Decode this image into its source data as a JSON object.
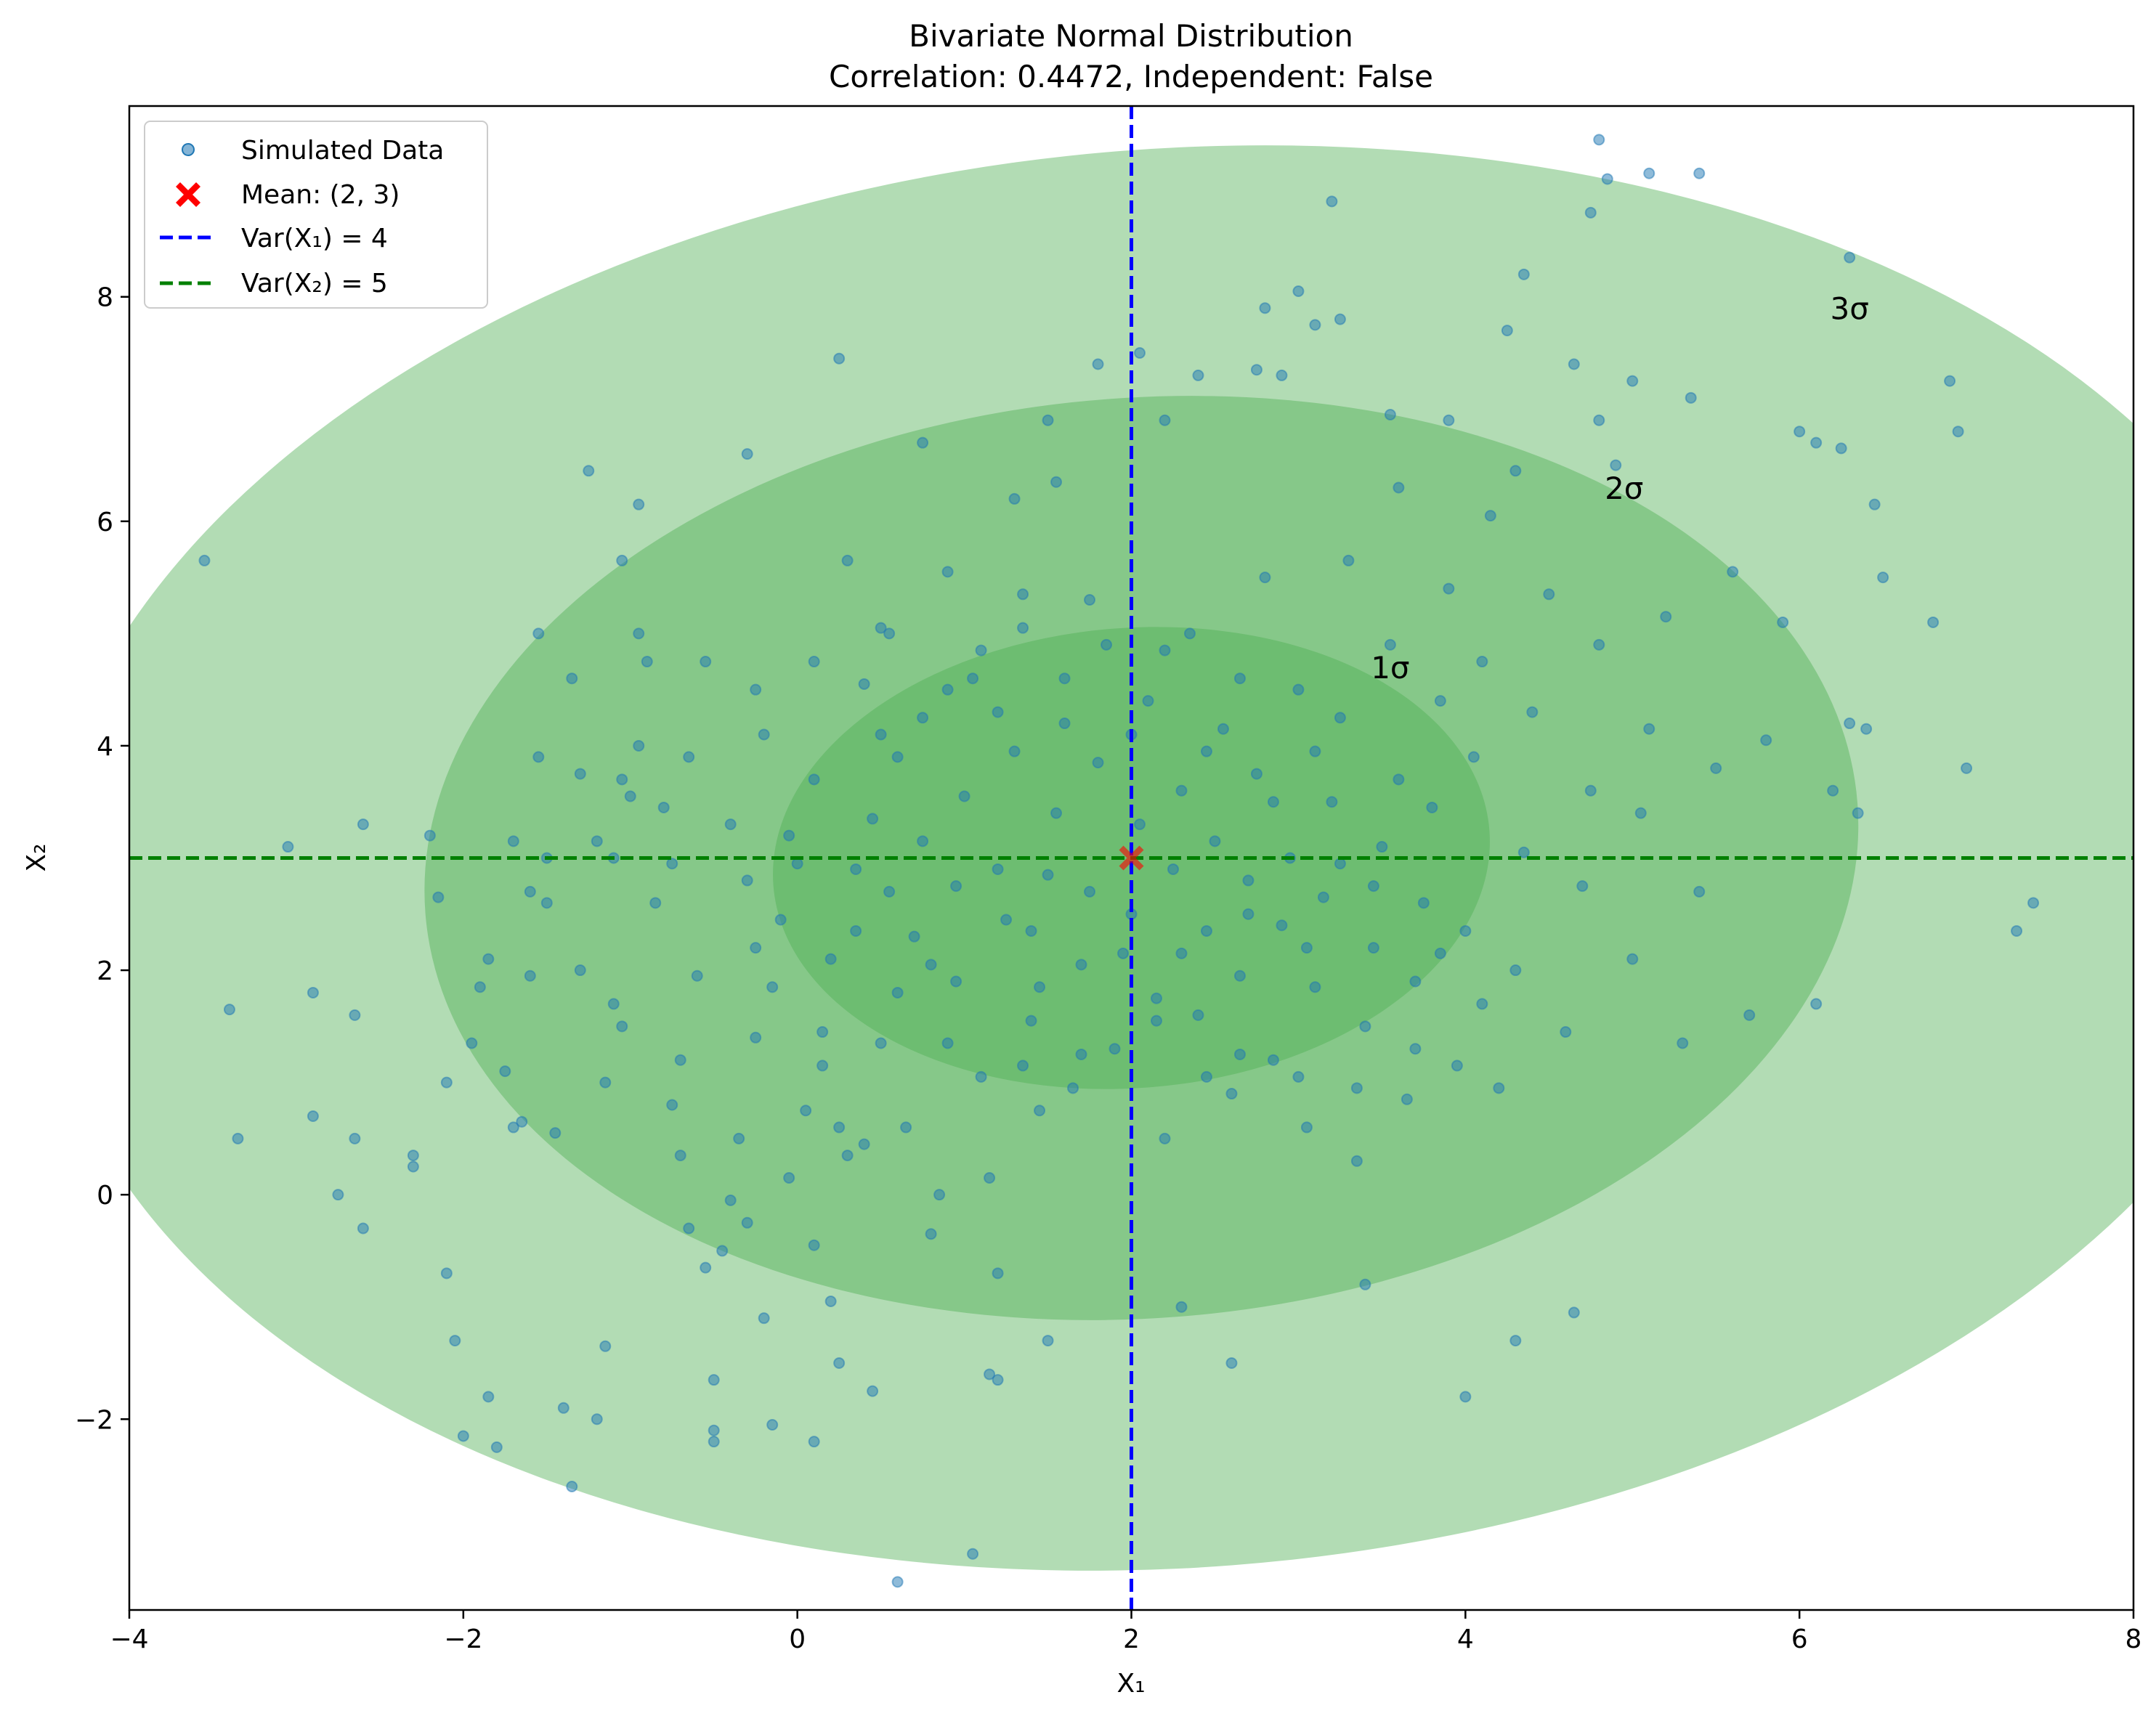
{
  "chart_data": {
    "type": "scatter",
    "title": "Bivariate Normal Distribution",
    "subtitle": "Correlation: 0.4472, Independent: False",
    "xlabel": "X₁",
    "ylabel": "X₂",
    "xlim": [
      -4,
      8
    ],
    "ylim": [
      -3.7,
      9.7
    ],
    "x_ticks": [
      -4,
      -2,
      0,
      2,
      4,
      6,
      8
    ],
    "x_tick_labels": [
      "−4",
      "−2",
      "0",
      "2",
      "4",
      "6",
      "8"
    ],
    "y_ticks": [
      -2,
      0,
      2,
      4,
      6,
      8
    ],
    "y_tick_labels": [
      "−2",
      "0",
      "2",
      "4",
      "6",
      "8"
    ],
    "grid": false,
    "legend_position": "upper-left",
    "colors": {
      "points": "#1f77b4",
      "mean": "#ff0000",
      "vline": "#0000ff",
      "hline": "#008000",
      "ellipse": "#4caf50"
    },
    "mean": {
      "x": 2,
      "y": 3
    },
    "vline": {
      "x": 2
    },
    "hline": {
      "y": 3
    },
    "ellipses": [
      {
        "label": "3σ",
        "cx": 2.28,
        "cy": 3.0,
        "rx": 6.85,
        "ry": 6.32,
        "angle_deg": -4.4,
        "label_x": 6.3,
        "label_y": 7.8
      },
      {
        "label": "2σ",
        "cx": 2.06,
        "cy": 3.0,
        "rx": 4.3,
        "ry": 4.1,
        "angle_deg": -4.4,
        "label_x": 4.95,
        "label_y": 6.2
      },
      {
        "label": "1σ",
        "cx": 2.0,
        "cy": 3.0,
        "rx": 2.15,
        "ry": 2.05,
        "angle_deg": -4.4,
        "label_x": 3.55,
        "label_y": 4.6
      }
    ],
    "legend": [
      {
        "label": "Simulated Data",
        "marker": "dot"
      },
      {
        "label": "Mean: (2, 3)",
        "marker": "x"
      },
      {
        "label": "Var(X₁) = 4",
        "marker": "dash-blue"
      },
      {
        "label": "Var(X₂) = 5",
        "marker": "dash-green"
      }
    ],
    "series": [
      {
        "name": "Simulated Data",
        "points": [
          [
            -3.55,
            5.65
          ],
          [
            -3.4,
            1.65
          ],
          [
            -3.35,
            0.5
          ],
          [
            -3.05,
            3.1
          ],
          [
            -2.9,
            1.8
          ],
          [
            -2.9,
            0.7
          ],
          [
            -2.75,
            0.0
          ],
          [
            -2.65,
            1.6
          ],
          [
            -2.65,
            0.5
          ],
          [
            -2.6,
            3.3
          ],
          [
            -2.6,
            -0.3
          ],
          [
            -2.3,
            0.35
          ],
          [
            -2.3,
            0.25
          ],
          [
            -2.2,
            3.2
          ],
          [
            -2.15,
            2.65
          ],
          [
            -2.1,
            1.0
          ],
          [
            -2.1,
            -0.7
          ],
          [
            -2.05,
            -1.3
          ],
          [
            -2.0,
            -2.15
          ],
          [
            -1.95,
            1.35
          ],
          [
            -1.9,
            1.85
          ],
          [
            -1.85,
            -1.8
          ],
          [
            -1.8,
            -2.25
          ],
          [
            -1.75,
            1.1
          ],
          [
            -1.7,
            0.6
          ],
          [
            -1.65,
            0.65
          ],
          [
            -1.6,
            1.95
          ],
          [
            -1.55,
            3.9
          ],
          [
            -1.5,
            3.0
          ],
          [
            -1.45,
            0.55
          ],
          [
            -1.4,
            -1.9
          ],
          [
            -1.35,
            4.6
          ],
          [
            -1.3,
            3.75
          ],
          [
            -1.25,
            6.45
          ],
          [
            -1.2,
            3.15
          ],
          [
            -1.15,
            1.0
          ],
          [
            -1.1,
            1.7
          ],
          [
            -1.05,
            3.7
          ],
          [
            -1.0,
            3.55
          ],
          [
            -0.95,
            5.0
          ],
          [
            -0.9,
            4.75
          ],
          [
            -0.85,
            2.6
          ],
          [
            -0.8,
            3.45
          ],
          [
            -0.75,
            0.8
          ],
          [
            -0.7,
            0.35
          ],
          [
            -0.65,
            -0.3
          ],
          [
            -0.6,
            1.95
          ],
          [
            -0.55,
            -0.65
          ],
          [
            -0.5,
            -1.65
          ],
          [
            -0.45,
            -0.5
          ],
          [
            -0.4,
            -0.05
          ],
          [
            -0.35,
            0.5
          ],
          [
            -0.3,
            -0.25
          ],
          [
            -0.25,
            2.2
          ],
          [
            -0.2,
            -1.1
          ],
          [
            -0.15,
            1.85
          ],
          [
            -0.1,
            2.45
          ],
          [
            -0.05,
            3.2
          ],
          [
            0.0,
            2.95
          ],
          [
            0.05,
            0.75
          ],
          [
            0.1,
            -0.45
          ],
          [
            0.15,
            1.15
          ],
          [
            0.2,
            -0.95
          ],
          [
            0.25,
            -1.5
          ],
          [
            0.3,
            0.35
          ],
          [
            0.35,
            2.35
          ],
          [
            0.4,
            0.45
          ],
          [
            0.45,
            3.35
          ],
          [
            0.5,
            4.1
          ],
          [
            0.55,
            5.0
          ],
          [
            0.6,
            1.8
          ],
          [
            0.65,
            0.6
          ],
          [
            0.7,
            2.3
          ],
          [
            0.75,
            3.15
          ],
          [
            0.8,
            -0.35
          ],
          [
            0.85,
            0.0
          ],
          [
            0.9,
            1.35
          ],
          [
            0.95,
            2.75
          ],
          [
            1.0,
            3.55
          ],
          [
            1.05,
            4.6
          ],
          [
            1.1,
            1.05
          ],
          [
            1.15,
            0.15
          ],
          [
            1.2,
            -0.7
          ],
          [
            1.25,
            2.45
          ],
          [
            1.3,
            3.95
          ],
          [
            1.35,
            5.35
          ],
          [
            1.4,
            1.55
          ],
          [
            1.45,
            0.75
          ],
          [
            1.5,
            2.85
          ],
          [
            1.55,
            3.4
          ],
          [
            1.6,
            4.2
          ],
          [
            1.65,
            0.95
          ],
          [
            1.7,
            2.05
          ],
          [
            1.75,
            2.7
          ],
          [
            1.8,
            3.85
          ],
          [
            1.85,
            4.9
          ],
          [
            1.9,
            1.3
          ],
          [
            1.95,
            2.15
          ],
          [
            2.0,
            2.5
          ],
          [
            2.05,
            3.3
          ],
          [
            2.1,
            4.4
          ],
          [
            2.15,
            1.75
          ],
          [
            2.2,
            0.5
          ],
          [
            2.25,
            2.9
          ],
          [
            2.3,
            3.6
          ],
          [
            2.35,
            5.0
          ],
          [
            2.4,
            1.6
          ],
          [
            2.45,
            2.35
          ],
          [
            2.5,
            3.15
          ],
          [
            2.55,
            4.15
          ],
          [
            2.6,
            0.9
          ],
          [
            2.65,
            1.95
          ],
          [
            2.7,
            2.8
          ],
          [
            2.75,
            3.75
          ],
          [
            2.8,
            5.5
          ],
          [
            2.85,
            1.2
          ],
          [
            2.9,
            2.4
          ],
          [
            2.95,
            3.0
          ],
          [
            3.0,
            4.5
          ],
          [
            3.05,
            0.6
          ],
          [
            3.1,
            1.85
          ],
          [
            3.15,
            2.65
          ],
          [
            3.2,
            3.5
          ],
          [
            3.25,
            4.25
          ],
          [
            3.3,
            5.65
          ],
          [
            3.35,
            0.3
          ],
          [
            3.4,
            1.5
          ],
          [
            3.45,
            2.2
          ],
          [
            3.5,
            3.1
          ],
          [
            3.55,
            4.9
          ],
          [
            3.6,
            6.3
          ],
          [
            3.65,
            0.85
          ],
          [
            3.7,
            1.9
          ],
          [
            3.75,
            2.6
          ],
          [
            3.8,
            3.45
          ],
          [
            3.85,
            4.4
          ],
          [
            3.9,
            5.4
          ],
          [
            3.95,
            1.15
          ],
          [
            4.0,
            2.35
          ],
          [
            4.05,
            3.9
          ],
          [
            4.1,
            4.75
          ],
          [
            4.15,
            6.05
          ],
          [
            4.2,
            0.95
          ],
          [
            4.3,
            2.0
          ],
          [
            4.35,
            3.05
          ],
          [
            4.4,
            4.3
          ],
          [
            4.5,
            5.35
          ],
          [
            4.6,
            1.45
          ],
          [
            4.7,
            2.75
          ],
          [
            4.75,
            3.6
          ],
          [
            4.8,
            4.9
          ],
          [
            4.9,
            6.5
          ],
          [
            5.0,
            2.1
          ],
          [
            5.05,
            3.4
          ],
          [
            5.1,
            4.15
          ],
          [
            5.2,
            5.15
          ],
          [
            5.3,
            1.35
          ],
          [
            5.4,
            2.7
          ],
          [
            5.5,
            3.8
          ],
          [
            5.6,
            5.55
          ],
          [
            5.7,
            1.6
          ],
          [
            5.8,
            4.05
          ],
          [
            5.9,
            5.1
          ],
          [
            6.0,
            6.8
          ],
          [
            6.1,
            1.7
          ],
          [
            6.2,
            3.6
          ],
          [
            6.3,
            4.2
          ],
          [
            6.35,
            3.4
          ],
          [
            6.4,
            4.15
          ],
          [
            6.45,
            6.15
          ],
          [
            6.5,
            5.5
          ],
          [
            6.8,
            5.1
          ],
          [
            6.9,
            7.25
          ],
          [
            6.95,
            6.8
          ],
          [
            7.0,
            3.8
          ],
          [
            7.3,
            2.35
          ],
          [
            7.4,
            2.6
          ],
          [
            0.25,
            7.45
          ],
          [
            1.3,
            6.2
          ],
          [
            1.5,
            6.9
          ],
          [
            1.8,
            7.4
          ],
          [
            2.05,
            7.5
          ],
          [
            2.2,
            6.9
          ],
          [
            2.4,
            7.3
          ],
          [
            2.75,
            7.35
          ],
          [
            2.8,
            7.9
          ],
          [
            2.9,
            7.3
          ],
          [
            3.0,
            8.05
          ],
          [
            3.1,
            7.75
          ],
          [
            3.25,
            7.8
          ],
          [
            3.2,
            8.85
          ],
          [
            3.55,
            6.95
          ],
          [
            3.9,
            6.9
          ],
          [
            4.25,
            7.7
          ],
          [
            4.35,
            8.2
          ],
          [
            4.3,
            6.45
          ],
          [
            4.65,
            7.4
          ],
          [
            4.8,
            6.9
          ],
          [
            5.0,
            7.25
          ],
          [
            5.35,
            7.1
          ],
          [
            4.75,
            8.75
          ],
          [
            4.85,
            9.05
          ],
          [
            4.8,
            9.4
          ],
          [
            5.1,
            9.1
          ],
          [
            5.4,
            9.1
          ],
          [
            6.3,
            8.35
          ],
          [
            6.25,
            6.65
          ],
          [
            6.1,
            6.7
          ],
          [
            0.6,
            -3.45
          ],
          [
            1.05,
            -3.2
          ],
          [
            -1.35,
            -2.6
          ],
          [
            0.1,
            -2.2
          ],
          [
            -0.5,
            -2.1
          ],
          [
            -0.5,
            -2.2
          ],
          [
            1.15,
            -1.6
          ],
          [
            1.2,
            -1.65
          ],
          [
            1.5,
            -1.3
          ],
          [
            2.6,
            -1.5
          ],
          [
            4.0,
            -1.8
          ],
          [
            4.65,
            -1.05
          ],
          [
            4.3,
            -1.3
          ],
          [
            3.4,
            -0.8
          ],
          [
            2.3,
            -1.0
          ],
          [
            -1.15,
            -1.35
          ],
          [
            -1.2,
            -2.0
          ],
          [
            0.45,
            -1.75
          ],
          [
            -0.15,
            -2.05
          ],
          [
            0.3,
            5.65
          ],
          [
            -0.3,
            6.6
          ],
          [
            -1.05,
            5.65
          ],
          [
            -0.95,
            6.15
          ],
          [
            0.75,
            6.7
          ],
          [
            1.55,
            6.35
          ],
          [
            -1.55,
            5.0
          ],
          [
            -1.6,
            2.7
          ],
          [
            -1.5,
            2.6
          ],
          [
            -1.7,
            3.15
          ],
          [
            -1.85,
            2.1
          ],
          [
            -0.75,
            2.95
          ],
          [
            -0.4,
            3.3
          ],
          [
            -0.3,
            2.8
          ],
          [
            0.35,
            2.9
          ],
          [
            0.6,
            3.9
          ],
          [
            0.9,
            4.5
          ],
          [
            1.1,
            4.85
          ],
          [
            1.2,
            2.9
          ],
          [
            1.4,
            2.35
          ],
          [
            0.8,
            2.05
          ],
          [
            0.5,
            1.35
          ],
          [
            0.25,
            0.6
          ],
          [
            -0.05,
            0.15
          ],
          [
            0.15,
            1.45
          ],
          [
            0.95,
            1.9
          ],
          [
            1.35,
            1.15
          ],
          [
            1.7,
            1.25
          ],
          [
            2.45,
            1.05
          ],
          [
            2.15,
            1.55
          ],
          [
            2.65,
            1.25
          ],
          [
            3.0,
            1.05
          ],
          [
            3.35,
            0.95
          ],
          [
            3.7,
            1.3
          ],
          [
            3.25,
            2.95
          ],
          [
            2.85,
            3.5
          ],
          [
            2.45,
            3.95
          ],
          [
            2.0,
            4.1
          ],
          [
            1.6,
            4.6
          ],
          [
            1.2,
            4.3
          ],
          [
            0.75,
            4.25
          ],
          [
            0.4,
            4.55
          ],
          [
            0.1,
            3.7
          ],
          [
            -0.2,
            4.1
          ],
          [
            -0.65,
            3.9
          ],
          [
            -0.95,
            4.0
          ],
          [
            -1.1,
            3.0
          ],
          [
            -1.3,
            2.0
          ],
          [
            -1.05,
            1.5
          ],
          [
            -0.7,
            1.2
          ],
          [
            -0.25,
            1.4
          ],
          [
            0.2,
            2.1
          ],
          [
            0.55,
            2.7
          ],
          [
            1.45,
            1.85
          ],
          [
            2.3,
            2.15
          ],
          [
            2.7,
            2.5
          ],
          [
            3.05,
            2.2
          ],
          [
            3.45,
            2.75
          ],
          [
            3.85,
            2.15
          ],
          [
            4.1,
            1.7
          ],
          [
            3.6,
            3.7
          ],
          [
            3.1,
            3.95
          ],
          [
            2.65,
            4.6
          ],
          [
            2.2,
            4.85
          ],
          [
            1.75,
            5.3
          ],
          [
            1.35,
            5.05
          ],
          [
            0.9,
            5.55
          ],
          [
            0.5,
            5.05
          ],
          [
            0.1,
            4.75
          ],
          [
            -0.25,
            4.5
          ],
          [
            -0.55,
            4.75
          ]
        ]
      }
    ]
  }
}
